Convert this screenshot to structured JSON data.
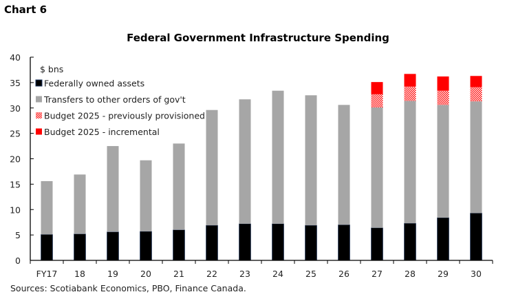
{
  "chart_data": {
    "type": "bar",
    "stacked": true,
    "chart_label": "Chart 6",
    "title": "Federal Government Infrastructure Spending",
    "ylabel": "$ bns",
    "xlabel": "",
    "ylim": [
      0,
      40
    ],
    "yticks": [
      0,
      5,
      10,
      15,
      20,
      25,
      30,
      35,
      40
    ],
    "legend_position": "top-left",
    "categories": [
      "FY17",
      "18",
      "19",
      "20",
      "21",
      "22",
      "23",
      "24",
      "25",
      "26",
      "27",
      "28",
      "29",
      "30"
    ],
    "series": [
      {
        "name": "Federally owned assets",
        "color": "#000000",
        "pattern": "solid",
        "values": [
          5.1,
          5.2,
          5.6,
          5.7,
          6.0,
          6.9,
          7.2,
          7.2,
          6.9,
          7.0,
          6.4,
          7.3,
          8.4,
          9.3
        ]
      },
      {
        "name": "Transfers to other orders of gov't",
        "color": "#a6a6a6",
        "pattern": "solid",
        "values": [
          10.5,
          11.7,
          16.9,
          14.0,
          17.0,
          22.7,
          24.5,
          26.2,
          25.6,
          23.6,
          23.7,
          24.1,
          22.2,
          22.0
        ]
      },
      {
        "name": "Budget 2025 - previously provisioned",
        "color": "#ff0000",
        "pattern": "hatched",
        "values": [
          0,
          0,
          0,
          0,
          0,
          0,
          0,
          0,
          0,
          0,
          2.6,
          2.8,
          2.8,
          2.8
        ]
      },
      {
        "name": "Budget 2025 - incremental",
        "color": "#ff0000",
        "pattern": "solid",
        "values": [
          0,
          0,
          0,
          0,
          0,
          0,
          0,
          0,
          0,
          0,
          2.4,
          2.5,
          2.8,
          2.2
        ]
      }
    ],
    "source": "Sources: Scotiabank Economics, PBO, Finance Canada."
  }
}
